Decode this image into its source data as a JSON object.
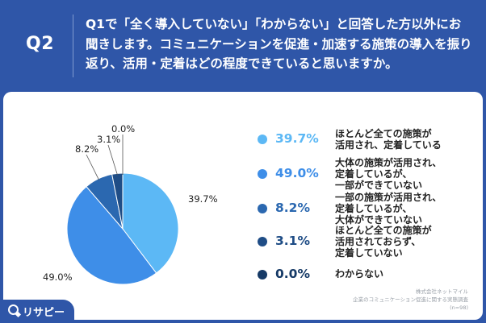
{
  "header": {
    "q_label": "Q2",
    "question": "Q1で「全く導入していない」「わからない」と回答した方以外にお聞きします。コミュニケーションを促進・加速する施策の導入を振り返り、活用・定着はどの程度できていると思いますか。"
  },
  "chart_data": {
    "type": "pie",
    "unit": "%",
    "start_angle": "top",
    "direction": "clockwise",
    "slices": [
      {
        "label": "ほとんど全ての施策が活用され、定着している",
        "value": 39.7,
        "value_label": "39.7%",
        "color": "#5cb8f5"
      },
      {
        "label": "大体の施策が活用され、定着しているが、一部ができていない",
        "value": 49.0,
        "value_label": "49.0%",
        "color": "#3e8ee8"
      },
      {
        "label": "一部の施策が活用され、定着しているが、大体ができていない",
        "value": 8.2,
        "value_label": "8.2%",
        "color": "#2b68b0"
      },
      {
        "label": "ほとんど全ての施策が活用されておらず、定着していない",
        "value": 3.1,
        "value_label": "3.1%",
        "color": "#1f4d86"
      },
      {
        "label": "わからない",
        "value": 0.0,
        "value_label": "0.0%",
        "color": "#163a66"
      }
    ]
  },
  "legend": {
    "items": [
      {
        "pct": "39.7%",
        "lines": [
          "ほとんど全ての施策が",
          "活用され、定着している"
        ],
        "color": "#5cb8f5"
      },
      {
        "pct": "49.0%",
        "lines": [
          "大体の施策が活用され、",
          "定着しているが、",
          "一部ができていない"
        ],
        "color": "#3e8ee8"
      },
      {
        "pct": "8.2%",
        "lines": [
          "一部の施策が活用され、",
          "定着しているが、",
          "大体ができていない"
        ],
        "color": "#2b68b0"
      },
      {
        "pct": "3.1%",
        "lines": [
          "ほとんど全ての施策が",
          "活用されておらず、",
          "定着していない"
        ],
        "color": "#1f4d86"
      },
      {
        "pct": "0.0%",
        "lines": [
          "わからない"
        ],
        "color": "#163a66"
      }
    ]
  },
  "source": {
    "line1": "株式会社ネットマイル",
    "line2": "企業のコミュニケーション促進に関する実態調査",
    "line3": "(n=98)"
  },
  "brand": {
    "name": "リサピー"
  }
}
